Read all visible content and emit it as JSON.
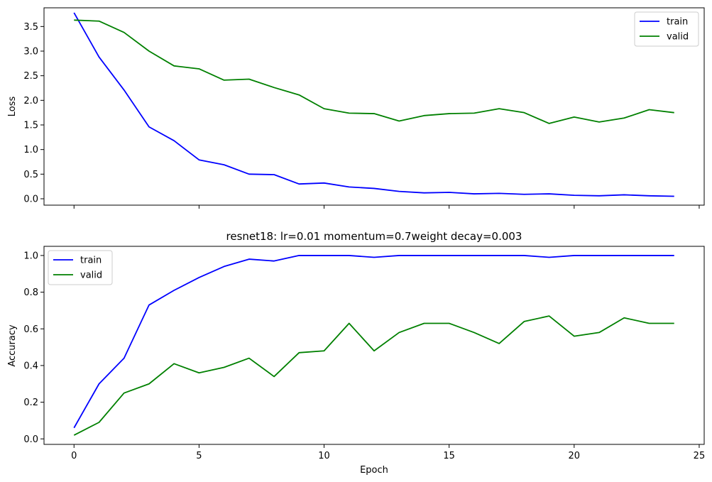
{
  "chart_data": [
    {
      "type": "line",
      "title": "",
      "xlabel": "",
      "ylabel": "Loss",
      "xlim": [
        -1.2,
        25.2
      ],
      "ylim": [
        -0.13,
        3.88
      ],
      "xticks": [
        0,
        5,
        10,
        15,
        20,
        25
      ],
      "xtick_labels_visible": false,
      "yticks": [
        0.0,
        0.5,
        1.0,
        1.5,
        2.0,
        2.5,
        3.0,
        3.5
      ],
      "ytick_labels": [
        "0.0",
        "0.5",
        "1.0",
        "1.5",
        "2.0",
        "2.5",
        "3.0",
        "3.5"
      ],
      "legend": "top-right",
      "grid": false,
      "x": [
        0,
        1,
        2,
        3,
        4,
        5,
        6,
        7,
        8,
        9,
        10,
        11,
        12,
        13,
        14,
        15,
        16,
        17,
        18,
        19,
        20,
        21,
        22,
        23,
        24
      ],
      "series": [
        {
          "name": "train",
          "color": "#0000ff",
          "values": [
            3.78,
            2.88,
            2.21,
            1.46,
            1.18,
            0.79,
            0.69,
            0.5,
            0.49,
            0.3,
            0.32,
            0.24,
            0.21,
            0.15,
            0.12,
            0.13,
            0.1,
            0.11,
            0.09,
            0.1,
            0.07,
            0.06,
            0.08,
            0.06,
            0.05
          ]
        },
        {
          "name": "valid",
          "color": "#008000",
          "values": [
            3.63,
            3.61,
            3.38,
            3.0,
            2.7,
            2.64,
            2.41,
            2.43,
            2.26,
            2.11,
            1.83,
            1.74,
            1.73,
            1.58,
            1.69,
            1.73,
            1.74,
            1.83,
            1.75,
            1.53,
            1.66,
            1.56,
            1.64,
            1.81,
            1.75
          ]
        }
      ]
    },
    {
      "type": "line",
      "title": "resnet18: lr=0.01 momentum=0.7weight decay=0.003",
      "xlabel": "Epoch",
      "ylabel": "Accuracy",
      "xlim": [
        -1.2,
        25.2
      ],
      "ylim": [
        -0.03,
        1.05
      ],
      "xticks": [
        0,
        5,
        10,
        15,
        20,
        25
      ],
      "xtick_labels": [
        "0",
        "5",
        "10",
        "15",
        "20",
        "25"
      ],
      "xtick_labels_visible": true,
      "yticks": [
        0.0,
        0.2,
        0.4,
        0.6,
        0.8,
        1.0
      ],
      "ytick_labels": [
        "0.0",
        "0.2",
        "0.4",
        "0.6",
        "0.8",
        "1.0"
      ],
      "legend": "top-left",
      "grid": false,
      "x": [
        0,
        1,
        2,
        3,
        4,
        5,
        6,
        7,
        8,
        9,
        10,
        11,
        12,
        13,
        14,
        15,
        16,
        17,
        18,
        19,
        20,
        21,
        22,
        23,
        24
      ],
      "series": [
        {
          "name": "train",
          "color": "#0000ff",
          "values": [
            0.06,
            0.3,
            0.44,
            0.73,
            0.81,
            0.88,
            0.94,
            0.98,
            0.97,
            1.0,
            1.0,
            1.0,
            0.99,
            1.0,
            1.0,
            1.0,
            1.0,
            1.0,
            1.0,
            0.99,
            1.0,
            1.0,
            1.0,
            1.0,
            1.0
          ]
        },
        {
          "name": "valid",
          "color": "#008000",
          "values": [
            0.02,
            0.09,
            0.25,
            0.3,
            0.41,
            0.36,
            0.39,
            0.44,
            0.34,
            0.47,
            0.48,
            0.63,
            0.48,
            0.58,
            0.63,
            0.63,
            0.58,
            0.52,
            0.64,
            0.67,
            0.56,
            0.58,
            0.66,
            0.63,
            0.63
          ]
        }
      ]
    }
  ]
}
